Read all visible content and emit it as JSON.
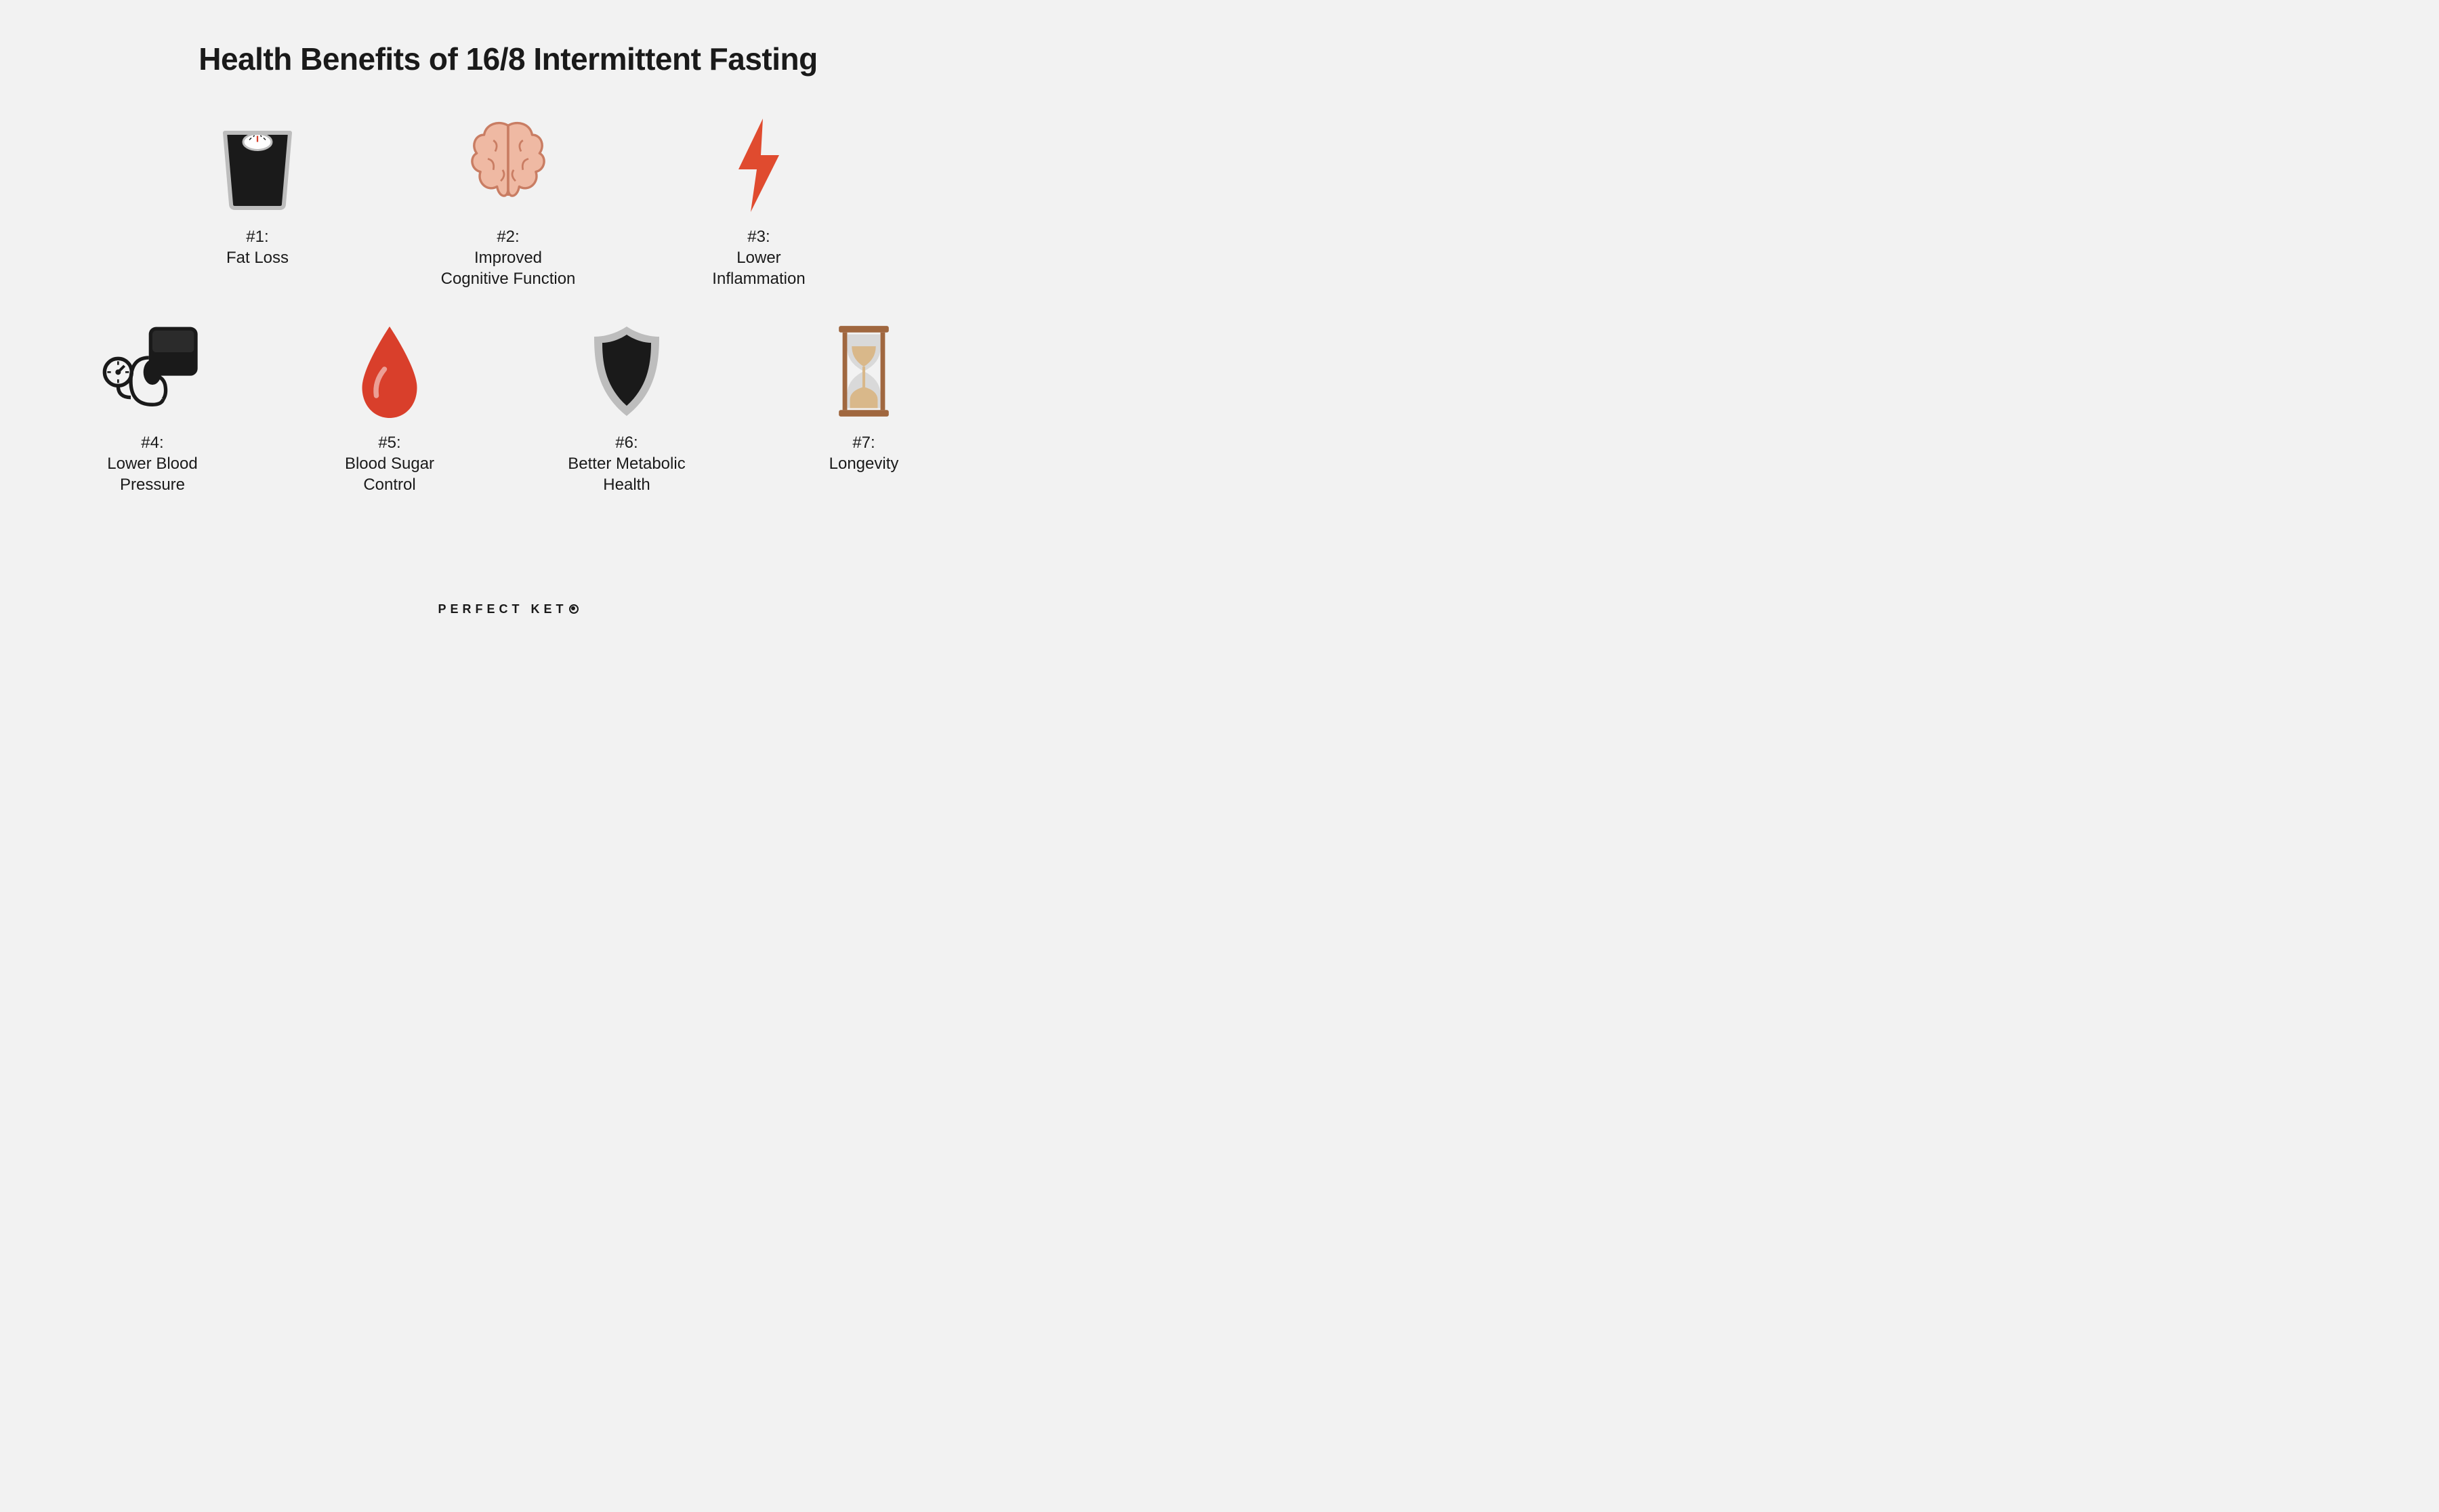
{
  "title": "Health Benefits of 16/8 Intermittent Fasting",
  "title_fontsize": 46,
  "label_fontsize": 24,
  "background_color": "#f2f2f2",
  "text_color": "#1a1a1a",
  "icon_colors": {
    "black": "#1a1a1a",
    "red": "#d93f2b",
    "orange_red": "#e04b2f",
    "grey": "#bdbdbd",
    "light_grey": "#d9d9d9",
    "brain_fill": "#efb9a3",
    "brain_stroke": "#c97d63",
    "sand": "#d9b88a",
    "brown": "#a0673f",
    "white": "#ffffff"
  },
  "brand": "PERFECT KET",
  "items": [
    {
      "num": "#1:",
      "label": "Fat Loss",
      "icon": "scale"
    },
    {
      "num": "#2:",
      "label": "Improved\nCognitive Function",
      "icon": "brain"
    },
    {
      "num": "#3:",
      "label": "Lower\nInflammation",
      "icon": "bolt"
    },
    {
      "num": "#4:",
      "label": "Lower Blood\nPressure",
      "icon": "bp"
    },
    {
      "num": "#5:",
      "label": "Blood Sugar\nControl",
      "icon": "drop"
    },
    {
      "num": "#6:",
      "label": "Better Metabolic\nHealth",
      "icon": "shield"
    },
    {
      "num": "#7:",
      "label": "Longevity",
      "icon": "hourglass"
    }
  ]
}
